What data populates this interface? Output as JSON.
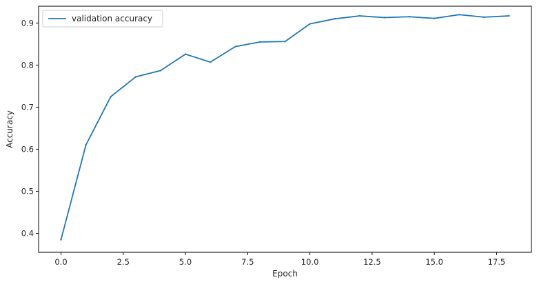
{
  "chart_data": {
    "type": "line",
    "title": "",
    "xlabel": "Epoch",
    "ylabel": "Accuracy",
    "xlim": [
      -0.9,
      18.9
    ],
    "ylim": [
      0.355,
      0.94
    ],
    "xticks": [
      "0.0",
      "2.5",
      "5.0",
      "7.5",
      "10.0",
      "12.5",
      "15.0",
      "17.5"
    ],
    "yticks": [
      "0.4",
      "0.5",
      "0.6",
      "0.7",
      "0.8",
      "0.9"
    ],
    "grid": false,
    "legend_position": "top-left",
    "series": [
      {
        "name": "validation accuracy",
        "color": "#1f77b4",
        "x": [
          0,
          1,
          2,
          3,
          4,
          5,
          6,
          7,
          8,
          9,
          10,
          11,
          12,
          13,
          14,
          15,
          16,
          17,
          18
        ],
        "y": [
          0.385,
          0.61,
          0.725,
          0.772,
          0.787,
          0.826,
          0.807,
          0.844,
          0.855,
          0.856,
          0.898,
          0.91,
          0.917,
          0.913,
          0.915,
          0.911,
          0.92,
          0.914,
          0.917
        ]
      }
    ]
  }
}
